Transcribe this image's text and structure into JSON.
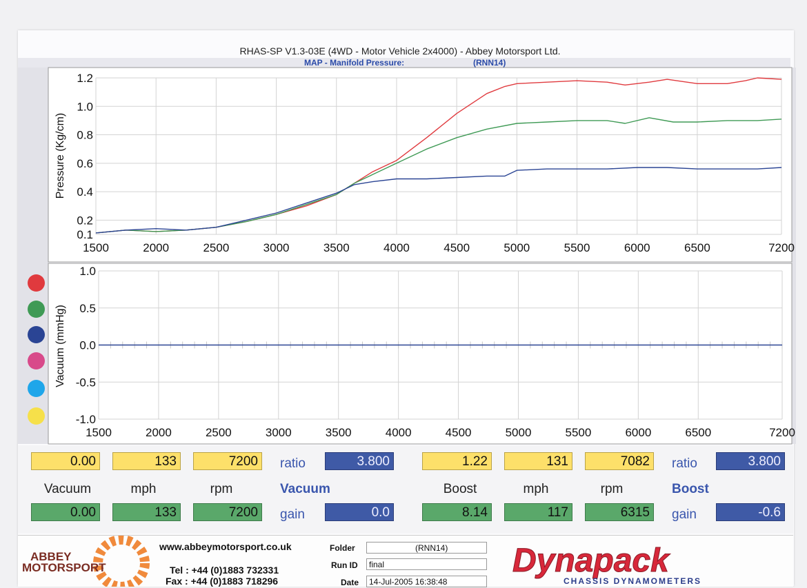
{
  "header": {
    "title": "RHAS-SP V1.3-03E  (4WD - Motor Vehicle 2x4000) - Abbey Motorsport Ltd.",
    "subtitle": "MAP - Manifold Pressure:",
    "run_code": "(RNN14)"
  },
  "legend_dot_colors": [
    "#e03a3e",
    "#3f9a55",
    "#2a4494",
    "#d84a8a",
    "#1fa6ea",
    "#f6e04a"
  ],
  "chart_data": [
    {
      "type": "line",
      "ylabel": "Pressure (Kg/cm)",
      "xlim": [
        1500,
        7200
      ],
      "ylim": [
        0.1,
        1.2
      ],
      "x_ticks": [
        1500,
        2000,
        2500,
        3000,
        3500,
        4000,
        4500,
        5000,
        5500,
        6000,
        6500,
        7200
      ],
      "y_ticks": [
        "0.1",
        "0.2",
        "0.4",
        "0.6",
        "0.8",
        "1.0",
        "1.2"
      ],
      "grid": true,
      "series": [
        {
          "color": "#e03a3e",
          "x": [
            1500,
            1750,
            2000,
            2250,
            2500,
            2750,
            3000,
            3250,
            3500,
            3650,
            3800,
            4000,
            4250,
            4500,
            4750,
            4900,
            5000,
            5250,
            5500,
            5750,
            5900,
            6100,
            6250,
            6500,
            6750,
            6900,
            7000,
            7200
          ],
          "y": [
            0.11,
            0.13,
            0.12,
            0.13,
            0.15,
            0.19,
            0.24,
            0.3,
            0.38,
            0.46,
            0.54,
            0.62,
            0.78,
            0.95,
            1.09,
            1.14,
            1.16,
            1.17,
            1.18,
            1.17,
            1.15,
            1.17,
            1.19,
            1.16,
            1.16,
            1.18,
            1.2,
            1.19
          ]
        },
        {
          "color": "#3f9a55",
          "x": [
            1500,
            1750,
            2000,
            2250,
            2500,
            2750,
            3000,
            3250,
            3500,
            3650,
            3800,
            4000,
            4250,
            4500,
            4750,
            5000,
            5250,
            5500,
            5750,
            5900,
            6100,
            6300,
            6500,
            6750,
            7000,
            7200
          ],
          "y": [
            0.11,
            0.13,
            0.12,
            0.13,
            0.15,
            0.19,
            0.24,
            0.31,
            0.38,
            0.46,
            0.52,
            0.6,
            0.7,
            0.78,
            0.84,
            0.88,
            0.89,
            0.9,
            0.9,
            0.88,
            0.92,
            0.89,
            0.89,
            0.9,
            0.9,
            0.91
          ]
        },
        {
          "color": "#2a4494",
          "x": [
            1500,
            1750,
            2000,
            2250,
            2500,
            2750,
            3000,
            3250,
            3500,
            3650,
            3800,
            4000,
            4250,
            4500,
            4750,
            4900,
            5000,
            5250,
            5500,
            5750,
            6000,
            6250,
            6500,
            6750,
            7000,
            7200
          ],
          "y": [
            0.11,
            0.13,
            0.14,
            0.13,
            0.15,
            0.2,
            0.25,
            0.32,
            0.39,
            0.45,
            0.47,
            0.49,
            0.49,
            0.5,
            0.51,
            0.51,
            0.55,
            0.56,
            0.56,
            0.56,
            0.57,
            0.57,
            0.56,
            0.56,
            0.56,
            0.57
          ]
        }
      ]
    },
    {
      "type": "line",
      "ylabel": "Vacuum (mmHg)",
      "xlim": [
        1500,
        7200
      ],
      "ylim": [
        -1.0,
        1.0
      ],
      "x_ticks": [
        1500,
        2000,
        2500,
        3000,
        3500,
        4000,
        4500,
        5000,
        5500,
        6000,
        6500,
        7200
      ],
      "y_ticks": [
        "-1.0",
        "-0.5",
        "0.0",
        "0.5",
        "1.0"
      ],
      "grid": true,
      "series": [
        {
          "color": "#2a4494",
          "x": [
            1500,
            7200
          ],
          "y": [
            0.0,
            0.0
          ]
        }
      ]
    }
  ],
  "readouts": {
    "left": {
      "vacuum_yellow": "0.00",
      "mph_yellow": "133",
      "rpm_yellow": "7200",
      "ratio_label": "ratio",
      "ratio_value": "3.800",
      "vacuum_label": "Vacuum",
      "mph_label": "mph",
      "rpm_label": "rpm",
      "mode_label": "Vacuum",
      "vacuum_green": "0.00",
      "mph_green": "133",
      "rpm_green": "7200",
      "gain_label": "gain",
      "gain_value": "0.0"
    },
    "right": {
      "boost_yellow": "1.22",
      "mph_yellow": "131",
      "rpm_yellow": "7082",
      "ratio_label": "ratio",
      "ratio_value": "3.800",
      "boost_label": "Boost",
      "mph_label": "mph",
      "rpm_label": "rpm",
      "mode_label": "Boost",
      "boost_green": "8.14",
      "mph_green": "117",
      "rpm_green": "6315",
      "gain_label": "gain",
      "gain_value": "-0.6"
    }
  },
  "footer": {
    "logo_line1": "ABBEY",
    "logo_line2": "MOTORSPORT",
    "website": "www.abbeymotorsport.co.uk",
    "tel": "Tel : +44 (0)1883 732331",
    "fax": "Fax : +44 (0)1883 718296",
    "folder_label": "Folder",
    "folder_value": "(RNN14)",
    "runid_label": "Run ID",
    "runid_value": "final",
    "date_label": "Date",
    "date_value": "14-Jul-2005  16:38:48",
    "brand": "Dynapack",
    "brand_tagline": "CHASSIS   DYNAMOMETERS"
  }
}
